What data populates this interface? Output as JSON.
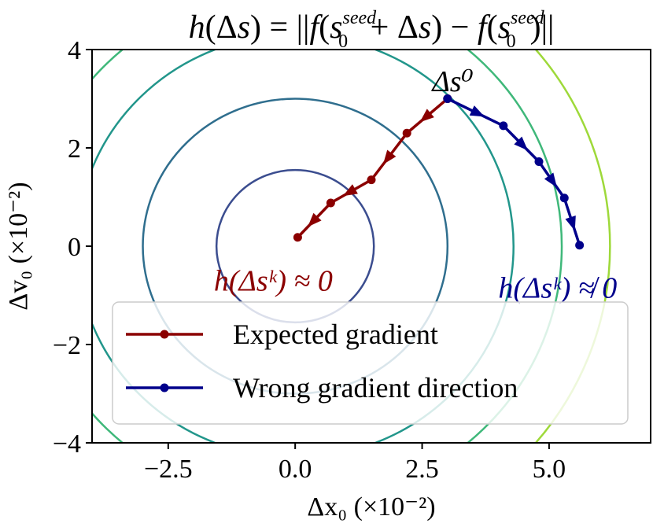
{
  "chart_data": {
    "type": "line",
    "title": "h(Δs) = ||f(s₀^seed + Δs) − f(s₀^seed)||",
    "xlabel": "Δx₀ (×10⁻²)",
    "ylabel": "Δv₀ (×10⁻²)",
    "xlim": [
      -4,
      7
    ],
    "ylim": [
      -4,
      4
    ],
    "xticks": [
      -2.5,
      0.0,
      2.5,
      5.0
    ],
    "xtick_labels": [
      "−2.5",
      "0.0",
      "2.5",
      "5.0"
    ],
    "yticks": [
      -4,
      -2,
      0,
      2,
      4
    ],
    "ytick_labels": [
      "−4",
      "−2",
      "0",
      "2",
      "4"
    ],
    "grid": false,
    "legend_position": "bottom-center",
    "contours": [
      {
        "radius": 1.55,
        "color": "#3b4d8f"
      },
      {
        "radius": 3.0,
        "color": "#2f6e8e"
      },
      {
        "radius": 4.3,
        "color": "#22968b"
      },
      {
        "radius": 5.25,
        "color": "#3fb87a"
      },
      {
        "radius": 6.2,
        "color": "#9ed93a"
      }
    ],
    "series": [
      {
        "name": "Expected gradient",
        "color": "#8b0000",
        "x": [
          3.0,
          2.2,
          1.5,
          0.7,
          0.05
        ],
        "y": [
          3.0,
          2.3,
          1.35,
          0.88,
          0.18
        ]
      },
      {
        "name": "Wrong gradient direction",
        "color": "#00008b",
        "x": [
          3.0,
          4.1,
          4.8,
          5.3,
          5.6
        ],
        "y": [
          3.0,
          2.45,
          1.72,
          0.98,
          0.02
        ]
      }
    ],
    "annotations": [
      {
        "text": "Δs⁰",
        "x": 2.7,
        "y": 3.15,
        "color": "#000000"
      },
      {
        "text": "h(Δsᵏ) ≈ 0",
        "x": -1.6,
        "y": -0.9,
        "color": "#8b0000"
      },
      {
        "text": "h(Δsᵏ) ≉ 0",
        "x": 4.0,
        "y": -1.05,
        "color": "#00008b"
      }
    ]
  }
}
